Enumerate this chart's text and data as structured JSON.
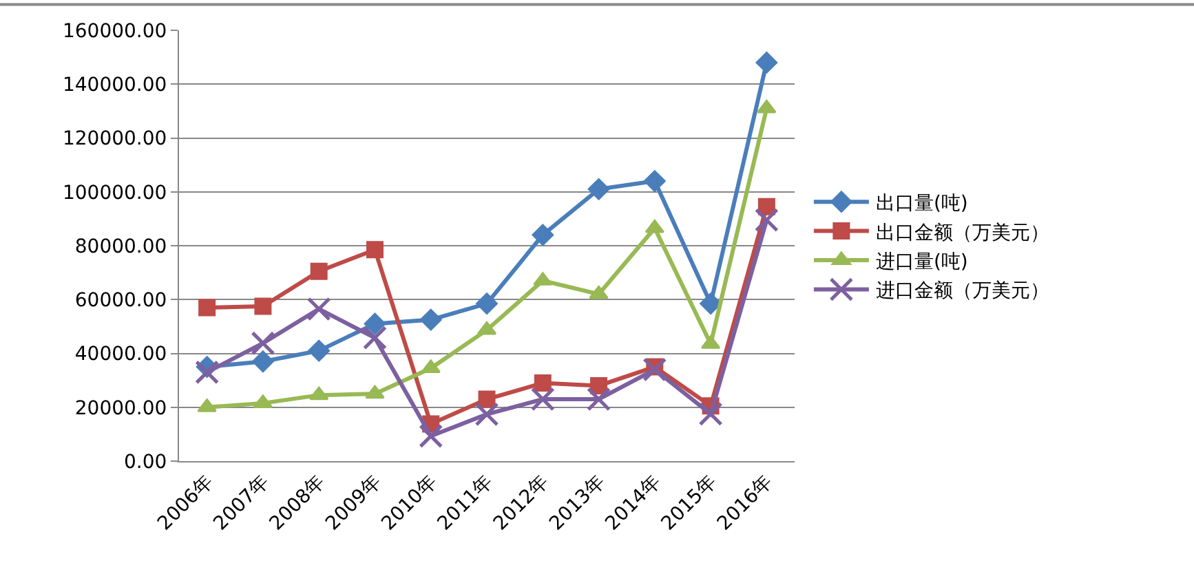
{
  "chart_data": {
    "type": "line",
    "categories": [
      "2006年",
      "2007年",
      "2008年",
      "2009年",
      "2010年",
      "2011年",
      "2012年",
      "2013年",
      "2014年",
      "2015年",
      "2016年"
    ],
    "series": [
      {
        "name": "出口量(吨)",
        "color": "#4a7ebb",
        "marker": "diamond",
        "values": [
          35000,
          37000,
          41000,
          51000,
          52500,
          58500,
          84000,
          101000,
          104000,
          58500,
          148000
        ]
      },
      {
        "name": "出口金额（万美元）",
        "color": "#be4b48",
        "marker": "square",
        "values": [
          57000,
          57500,
          70500,
          78500,
          13800,
          23000,
          29000,
          28000,
          35000,
          20500,
          94500
        ]
      },
      {
        "name": "进口量(吨)",
        "color": "#98b954",
        "marker": "triangle",
        "values": [
          20000,
          21500,
          24500,
          25000,
          34500,
          48700,
          67000,
          62000,
          86500,
          43500,
          131000
        ]
      },
      {
        "name": "进口金额（万美元）",
        "color": "#7d60a0",
        "marker": "cross",
        "values": [
          33000,
          43800,
          56500,
          45800,
          9300,
          17400,
          23000,
          23000,
          34000,
          17500,
          89500
        ]
      }
    ],
    "ylim": [
      0,
      160000
    ],
    "yticks": [
      {
        "value": 0,
        "label": "0.00"
      },
      {
        "value": 20000,
        "label": "20000.00"
      },
      {
        "value": 40000,
        "label": "40000.00"
      },
      {
        "value": 60000,
        "label": "60000.00"
      },
      {
        "value": 80000,
        "label": "80000.00"
      },
      {
        "value": 100000,
        "label": "100000.00"
      },
      {
        "value": 120000,
        "label": "120000.00"
      },
      {
        "value": 140000,
        "label": "140000.00"
      },
      {
        "value": 160000,
        "label": "160000.00"
      }
    ],
    "grid": "y",
    "legend": "right"
  }
}
